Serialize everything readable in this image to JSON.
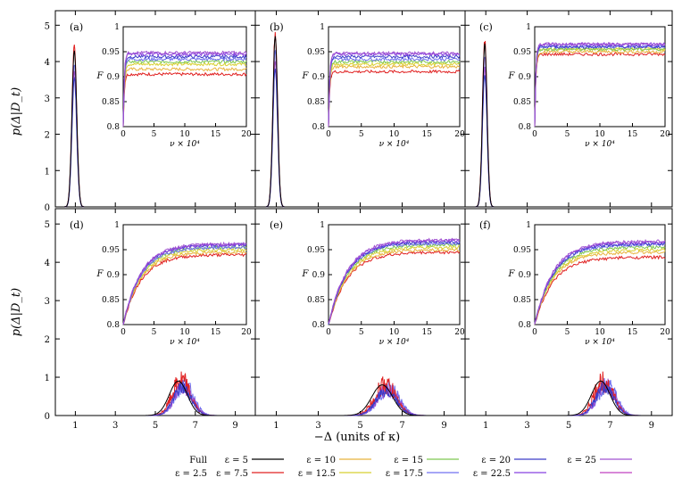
{
  "figure": {
    "ylabel": "p(Δ|D_t)",
    "xlabel": "−Δ (units of κ)",
    "main_xticks": [
      "1",
      "3",
      "5",
      "7",
      "9"
    ],
    "main_yticks": [
      "0",
      "1",
      "2",
      "3",
      "4",
      "5"
    ],
    "inset_xticks": [
      "0",
      "5",
      "10",
      "15",
      "20"
    ],
    "inset_yticks": [
      "0.8",
      "0.85",
      "0.9",
      "0.95",
      "1"
    ],
    "inset_ylabel": "F",
    "inset_xlabel": "ν × 10⁴"
  },
  "legend": {
    "entries": [
      {
        "label": "Full",
        "color": "#000000",
        "swatch": false
      },
      {
        "label": "ε = 5",
        "color": "#000000",
        "swatch": true
      },
      {
        "label": "ε = 10",
        "color": "#e8b23c",
        "swatch": true
      },
      {
        "label": "ε = 15",
        "color": "#7ec850",
        "swatch": true
      },
      {
        "label": "ε = 20",
        "color": "#3c3cc8",
        "swatch": true
      },
      {
        "label": "ε = 25",
        "color": "#a050d0",
        "swatch": true
      },
      {
        "label": "",
        "color": "#e040a0",
        "swatch": true
      },
      {
        "label": "ε = 2.5",
        "color": "#000000",
        "swatch": false
      },
      {
        "label": "ε = 7.5",
        "color": "#e02020",
        "swatch": true
      },
      {
        "label": "ε = 12.5",
        "color": "#d8d030",
        "swatch": true
      },
      {
        "label": "ε = 17.5",
        "color": "#7070f0",
        "swatch": true
      },
      {
        "label": "ε = 22.5",
        "color": "#8840e0",
        "swatch": true
      },
      {
        "label": "",
        "color": "#c040c0",
        "swatch": true
      }
    ]
  },
  "chart_data": [
    {
      "panel": "(a)",
      "type": "line",
      "x": [
        0,
        10
      ],
      "peak_center": 0.95,
      "peak_height": 4.3,
      "peak_width": 0.12,
      "inset_F_final": [
        0.905,
        0.915,
        0.925,
        0.93,
        0.935,
        0.94,
        0.945,
        0.948
      ]
    },
    {
      "panel": "(b)",
      "type": "line",
      "x": [
        0,
        10
      ],
      "peak_center": 0.95,
      "peak_height": 4.7,
      "peak_width": 0.11,
      "inset_F_final": [
        0.91,
        0.92,
        0.925,
        0.93,
        0.935,
        0.94,
        0.945,
        0.947
      ]
    },
    {
      "panel": "(c)",
      "type": "line",
      "x": [
        0,
        10
      ],
      "peak_center": 0.95,
      "peak_height": 4.5,
      "peak_width": 0.11,
      "inset_F_final": [
        0.945,
        0.95,
        0.955,
        0.955,
        0.96,
        0.96,
        0.965,
        0.965
      ]
    },
    {
      "panel": "(d)",
      "type": "line",
      "x": [
        0,
        10
      ],
      "peak_center": 6.3,
      "peak_height": 0.9,
      "peak_width": 0.45,
      "inset_F_final": [
        0.94,
        0.945,
        0.95,
        0.955,
        0.955,
        0.96,
        0.96,
        0.962
      ]
    },
    {
      "panel": "(e)",
      "type": "line",
      "x": [
        0,
        10
      ],
      "peak_center": 6.2,
      "peak_height": 0.8,
      "peak_width": 0.5,
      "inset_F_final": [
        0.945,
        0.95,
        0.955,
        0.96,
        0.963,
        0.965,
        0.968,
        0.97
      ]
    },
    {
      "panel": "(f)",
      "type": "line",
      "x": [
        0,
        10
      ],
      "peak_center": 6.7,
      "peak_height": 0.9,
      "peak_width": 0.45,
      "inset_F_final": [
        0.935,
        0.945,
        0.95,
        0.955,
        0.96,
        0.962,
        0.965,
        0.967
      ]
    }
  ],
  "series_colors": [
    "#e02020",
    "#e8b23c",
    "#d8d030",
    "#7ec850",
    "#7070f0",
    "#3c3cc8",
    "#8840e0",
    "#a050d0"
  ]
}
